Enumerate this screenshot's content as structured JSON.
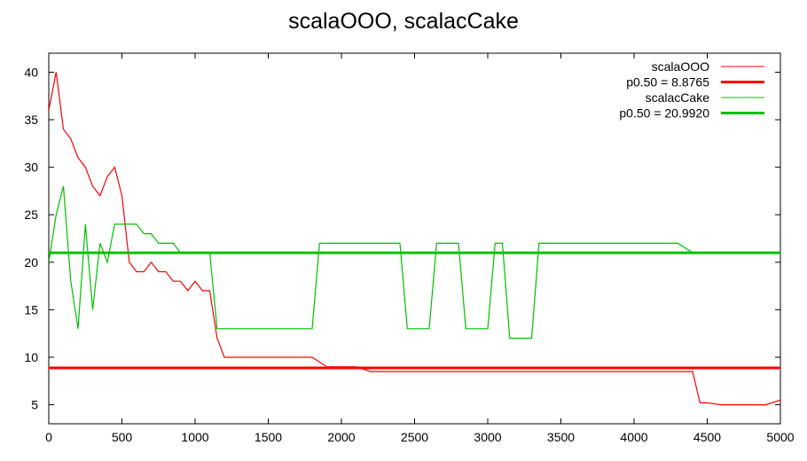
{
  "chart_data": {
    "type": "line",
    "title": "scalaOOO, scalacCake",
    "xlabel": "",
    "ylabel": "",
    "xlim": [
      0,
      5000
    ],
    "ylim": [
      3,
      42
    ],
    "xticks": [
      0,
      500,
      1000,
      1500,
      2000,
      2500,
      3000,
      3500,
      4000,
      4500,
      5000
    ],
    "yticks": [
      5,
      10,
      15,
      20,
      25,
      30,
      35,
      40
    ],
    "grid": false,
    "legend_position": "top-right",
    "series": [
      {
        "name": "scalaOOO",
        "color": "#ff0000",
        "points": [
          [
            0,
            36
          ],
          [
            50,
            40
          ],
          [
            100,
            34
          ],
          [
            150,
            33
          ],
          [
            200,
            31
          ],
          [
            250,
            30
          ],
          [
            300,
            28
          ],
          [
            350,
            27
          ],
          [
            400,
            29
          ],
          [
            450,
            30
          ],
          [
            500,
            27
          ],
          [
            550,
            20
          ],
          [
            600,
            19
          ],
          [
            650,
            19
          ],
          [
            700,
            20
          ],
          [
            750,
            19
          ],
          [
            800,
            19
          ],
          [
            850,
            18
          ],
          [
            900,
            18
          ],
          [
            950,
            17
          ],
          [
            1000,
            18
          ],
          [
            1050,
            17
          ],
          [
            1100,
            17
          ],
          [
            1150,
            12
          ],
          [
            1200,
            10
          ],
          [
            1300,
            10
          ],
          [
            1400,
            10
          ],
          [
            1500,
            10
          ],
          [
            1600,
            10
          ],
          [
            1700,
            10
          ],
          [
            1800,
            10
          ],
          [
            1900,
            9
          ],
          [
            2000,
            9
          ],
          [
            2100,
            9
          ],
          [
            2200,
            8.5
          ],
          [
            2300,
            8.5
          ],
          [
            2400,
            8.5
          ],
          [
            2500,
            8.5
          ],
          [
            2600,
            8.5
          ],
          [
            2700,
            8.5
          ],
          [
            2800,
            8.5
          ],
          [
            2900,
            8.5
          ],
          [
            3000,
            8.5
          ],
          [
            3100,
            8.5
          ],
          [
            3200,
            8.5
          ],
          [
            3300,
            8.5
          ],
          [
            3400,
            8.5
          ],
          [
            3500,
            8.5
          ],
          [
            3600,
            8.5
          ],
          [
            3700,
            8.5
          ],
          [
            3800,
            8.5
          ],
          [
            3900,
            8.5
          ],
          [
            4000,
            8.5
          ],
          [
            4100,
            8.5
          ],
          [
            4200,
            8.5
          ],
          [
            4300,
            8.5
          ],
          [
            4400,
            8.5
          ],
          [
            4450,
            5.2
          ],
          [
            4500,
            5.2
          ],
          [
            4600,
            5
          ],
          [
            4700,
            5
          ],
          [
            4800,
            5
          ],
          [
            4900,
            5
          ],
          [
            5000,
            5.5
          ]
        ]
      },
      {
        "name": "p0.50 = 8.8765",
        "color": "#ff0000",
        "constant": 8.8765
      },
      {
        "name": "scalacCake",
        "color": "#00c000",
        "points": [
          [
            0,
            20
          ],
          [
            50,
            25
          ],
          [
            100,
            28
          ],
          [
            150,
            18
          ],
          [
            200,
            13
          ],
          [
            250,
            24
          ],
          [
            300,
            15
          ],
          [
            350,
            22
          ],
          [
            400,
            20
          ],
          [
            450,
            24
          ],
          [
            500,
            24
          ],
          [
            550,
            24
          ],
          [
            600,
            24
          ],
          [
            650,
            23
          ],
          [
            700,
            23
          ],
          [
            750,
            22
          ],
          [
            800,
            22
          ],
          [
            850,
            22
          ],
          [
            900,
            21
          ],
          [
            950,
            21
          ],
          [
            1000,
            21
          ],
          [
            1050,
            21
          ],
          [
            1100,
            21
          ],
          [
            1150,
            13
          ],
          [
            1200,
            13
          ],
          [
            1300,
            13
          ],
          [
            1400,
            13
          ],
          [
            1500,
            13
          ],
          [
            1600,
            13
          ],
          [
            1700,
            13
          ],
          [
            1800,
            13
          ],
          [
            1850,
            22
          ],
          [
            1900,
            22
          ],
          [
            1950,
            22
          ],
          [
            2000,
            22
          ],
          [
            2050,
            22
          ],
          [
            2100,
            22
          ],
          [
            2200,
            22
          ],
          [
            2300,
            22
          ],
          [
            2400,
            22
          ],
          [
            2450,
            13
          ],
          [
            2500,
            13
          ],
          [
            2600,
            13
          ],
          [
            2650,
            22
          ],
          [
            2700,
            22
          ],
          [
            2750,
            22
          ],
          [
            2800,
            22
          ],
          [
            2850,
            13
          ],
          [
            2900,
            13
          ],
          [
            3000,
            13
          ],
          [
            3050,
            22
          ],
          [
            3100,
            22
          ],
          [
            3150,
            12
          ],
          [
            3200,
            12
          ],
          [
            3300,
            12
          ],
          [
            3350,
            22
          ],
          [
            3400,
            22
          ],
          [
            3500,
            22
          ],
          [
            3600,
            22
          ],
          [
            3700,
            22
          ],
          [
            3800,
            22
          ],
          [
            3900,
            22
          ],
          [
            4000,
            22
          ],
          [
            4100,
            22
          ],
          [
            4200,
            22
          ],
          [
            4300,
            22
          ],
          [
            4400,
            21
          ],
          [
            4500,
            21
          ],
          [
            4600,
            21
          ],
          [
            4700,
            21
          ],
          [
            4800,
            21
          ],
          [
            4900,
            21
          ],
          [
            5000,
            21
          ]
        ]
      },
      {
        "name": "p0.50 = 20.9920",
        "color": "#00c000",
        "constant": 20.992
      }
    ]
  }
}
